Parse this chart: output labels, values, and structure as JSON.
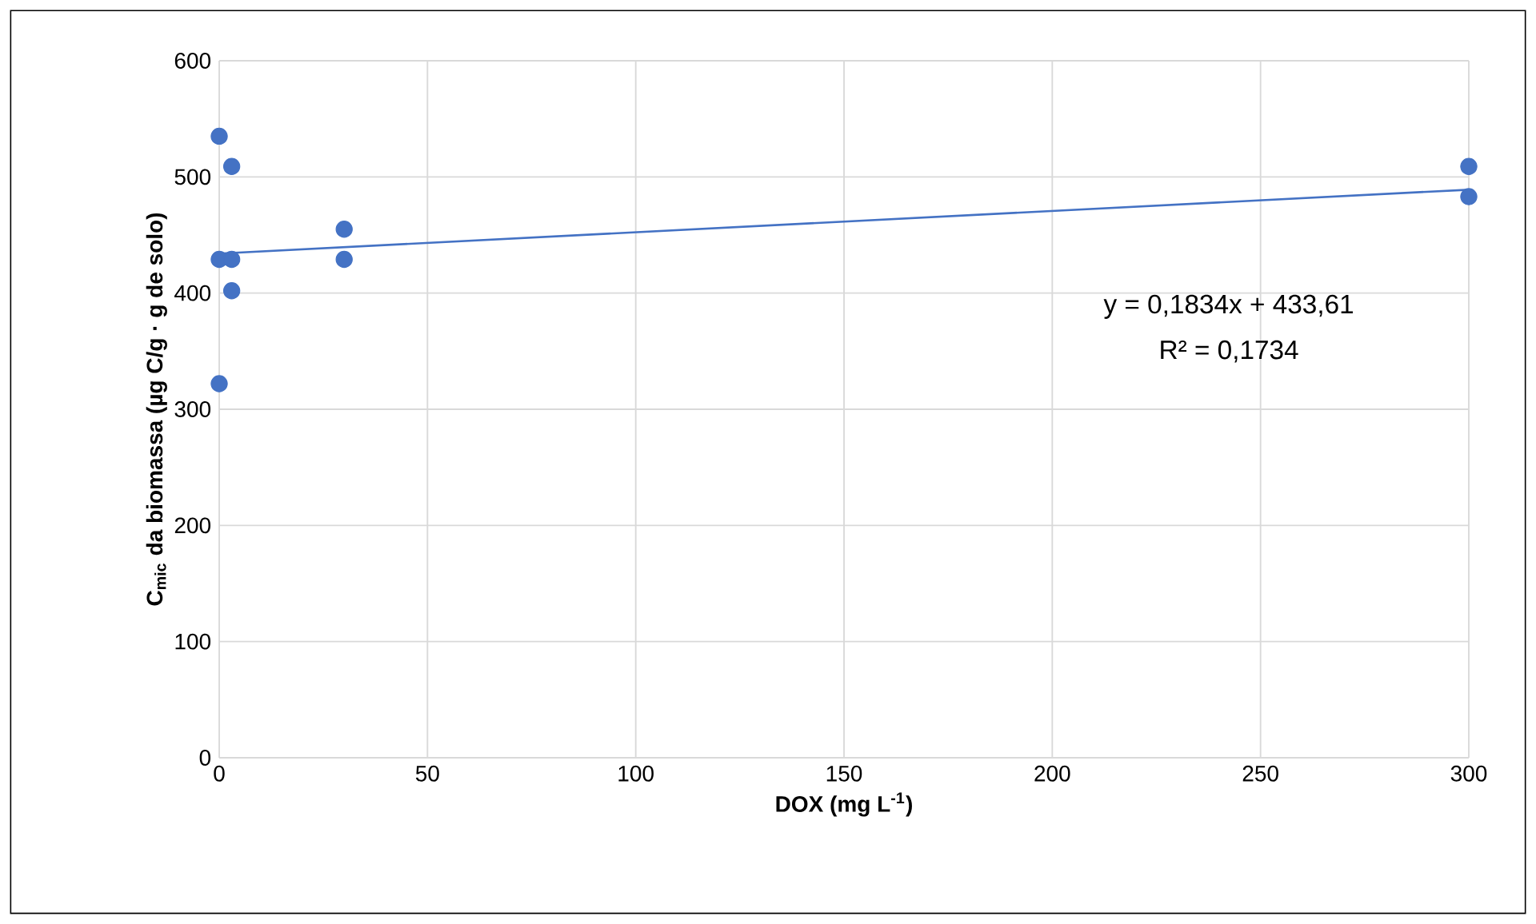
{
  "chart_data": {
    "type": "scatter",
    "xlabel": "DOX (mg L$^{-1}$)",
    "ylabel": "C$_{mic}$ da biomassa (µg C/g · g de solo)",
    "xlim": [
      0,
      300
    ],
    "ylim": [
      0,
      600
    ],
    "xticks": [
      0,
      50,
      100,
      150,
      200,
      250,
      300
    ],
    "yticks": [
      0,
      100,
      200,
      300,
      400,
      500,
      600
    ],
    "grid": true,
    "marker": "circle",
    "series": [
      {
        "color": "#4472c4",
        "x": [
          0,
          3,
          0,
          3,
          3,
          0,
          30,
          30,
          300,
          300
        ],
        "values": [
          535,
          509,
          429,
          429,
          402,
          322,
          455,
          429,
          509,
          483
        ]
      },
      {
        "type": "line",
        "color": "#4472c4",
        "marker": "none",
        "x": [
          0,
          300
        ],
        "values": [
          434,
          489
        ]
      }
    ],
    "annotations": [
      "y = 0,1834x + 433,61",
      "R² = 0,1734"
    ]
  }
}
